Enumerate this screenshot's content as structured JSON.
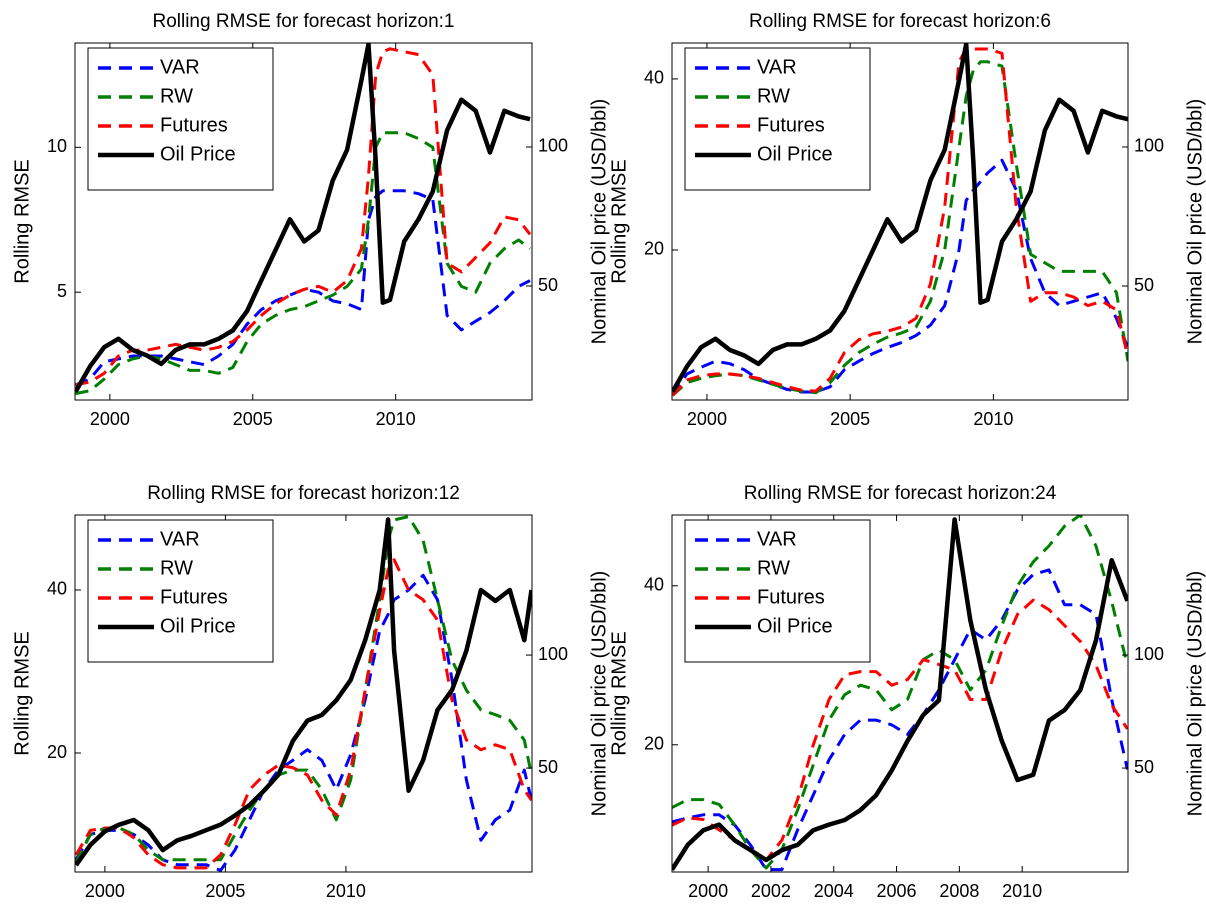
{
  "chart_data": [
    {
      "type": "line",
      "title": "Rolling RMSE for forecast horizon:1",
      "ylabel": "Rolling RMSE",
      "y2label": "Nominal Oil price (USD/bbl)",
      "x": [
        1998.8,
        1999.3,
        1999.8,
        2000.3,
        2000.8,
        2001.3,
        2001.8,
        2002.3,
        2002.8,
        2003.3,
        2003.8,
        2004.3,
        2004.8,
        2005.3,
        2005.8,
        2006.3,
        2006.8,
        2007.3,
        2007.8,
        2008.3,
        2008.8,
        2009.05,
        2009.3,
        2009.55,
        2009.8,
        2010.3,
        2010.8,
        2011.3,
        2011.8,
        2012.3,
        2012.8,
        2013.3,
        2013.8,
        2014.3,
        2014.7
      ],
      "xlim": [
        1998.78,
        2014.77
      ],
      "xticks": [
        2000,
        2005,
        2010
      ],
      "ylim": [
        1.28,
        13.6
      ],
      "yticks": [
        5,
        10
      ],
      "y2lim": [
        9,
        137.4
      ],
      "y2ticks": [
        50,
        100
      ],
      "legend": "upper left",
      "series": [
        {
          "name": "VAR",
          "color": "#0000ff",
          "linestyle": "dashed",
          "values": [
            1.8,
            2.0,
            2.6,
            2.7,
            2.8,
            2.8,
            2.8,
            2.7,
            2.6,
            2.5,
            2.8,
            3.2,
            3.9,
            4.4,
            4.7,
            4.9,
            5.1,
            5.0,
            4.7,
            4.6,
            4.4,
            7.5,
            8.3,
            8.5,
            8.5,
            8.5,
            8.4,
            8.2,
            4.2,
            3.7,
            4.0,
            4.3,
            4.7,
            5.2,
            5.4
          ]
        },
        {
          "name": "RW",
          "color": "#008000",
          "linestyle": "dashed",
          "values": [
            1.5,
            1.6,
            2.0,
            2.5,
            2.7,
            2.8,
            2.7,
            2.5,
            2.3,
            2.3,
            2.2,
            2.4,
            3.3,
            3.9,
            4.2,
            4.4,
            4.5,
            4.7,
            4.9,
            5.2,
            5.8,
            7.5,
            10.0,
            10.5,
            10.5,
            10.5,
            10.3,
            10.0,
            6.0,
            5.2,
            5.0,
            6.0,
            6.5,
            6.8,
            6.5
          ]
        },
        {
          "name": "Futures",
          "color": "#ff0000",
          "linestyle": "dashed",
          "values": [
            1.8,
            1.9,
            2.2,
            2.8,
            3.0,
            3.0,
            3.1,
            3.2,
            3.1,
            3.0,
            3.1,
            3.3,
            3.7,
            4.2,
            4.6,
            4.9,
            5.1,
            5.2,
            5.0,
            5.4,
            6.5,
            9.0,
            12.5,
            13.3,
            13.4,
            13.3,
            13.2,
            12.5,
            6.0,
            5.7,
            6.2,
            6.7,
            7.6,
            7.5,
            7.0
          ]
        },
        {
          "name": "Oil Price",
          "color": "#000000",
          "linestyle": "solid",
          "axis": "y2",
          "values": [
            12,
            21,
            28,
            31,
            27,
            25,
            22,
            27,
            29,
            29,
            31,
            34,
            41,
            52,
            63,
            74,
            66,
            70,
            88,
            99,
            124,
            137,
            95,
            44,
            45,
            66,
            74,
            84,
            106,
            117,
            113,
            98,
            113,
            111,
            110
          ]
        }
      ]
    },
    {
      "type": "line",
      "title": "Rolling RMSE for forecast horizon:6",
      "ylabel": "Rolling RMSE",
      "y2label": "Nominal Oil price (USD/bbl)",
      "x": [
        1998.8,
        1999.3,
        1999.8,
        2000.3,
        2000.8,
        2001.3,
        2001.8,
        2002.3,
        2002.8,
        2003.3,
        2003.8,
        2004.3,
        2004.8,
        2005.3,
        2005.8,
        2006.3,
        2006.8,
        2007.3,
        2007.8,
        2008.3,
        2008.8,
        2009.05,
        2009.3,
        2009.55,
        2009.8,
        2010.3,
        2010.8,
        2011.3,
        2011.8,
        2012.3,
        2012.8,
        2013.3,
        2013.8,
        2014.3,
        2014.7
      ],
      "xlim": [
        1998.78,
        2014.7
      ],
      "xticks": [
        2000,
        2005,
        2010
      ],
      "ylim": [
        2.46,
        44.2
      ],
      "yticks": [
        20,
        40
      ],
      "y2lim": [
        9,
        137.4
      ],
      "y2ticks": [
        50,
        100
      ],
      "legend": "upper left",
      "series": [
        {
          "name": "VAR",
          "color": "#0000ff",
          "linestyle": "dashed",
          "values": [
            3,
            5.5,
            6.3,
            7,
            6.7,
            6,
            4.9,
            4.3,
            3.7,
            3.4,
            3.4,
            4,
            6,
            7,
            7.9,
            8.6,
            9.2,
            10,
            11.2,
            13.5,
            20,
            25.8,
            27,
            28,
            29,
            30.5,
            27,
            19,
            15,
            13.5,
            14,
            14.5,
            15,
            12,
            8.5
          ]
        },
        {
          "name": "RW",
          "color": "#008000",
          "linestyle": "dashed",
          "values": [
            3,
            4.5,
            5,
            5.3,
            5.5,
            5.3,
            4.8,
            4.3,
            3.8,
            3.5,
            3.3,
            4.5,
            6.5,
            8,
            9,
            9.8,
            10.3,
            11,
            14,
            20,
            32,
            38,
            41,
            42,
            42,
            41.5,
            30,
            19.5,
            18.5,
            17.5,
            17.5,
            17.5,
            17.5,
            15,
            7
          ]
        },
        {
          "name": "Futures",
          "color": "#ff0000",
          "linestyle": "dashed",
          "values": [
            3,
            4.8,
            5.3,
            5.5,
            5.5,
            5.3,
            5,
            4.5,
            4,
            3.6,
            3.5,
            5,
            8,
            9.5,
            10.2,
            10.5,
            11,
            12,
            16,
            25,
            42,
            43.5,
            43.5,
            43.5,
            43.5,
            43,
            25,
            14,
            15,
            15,
            14.5,
            13.5,
            14,
            13,
            7.5
          ]
        },
        {
          "name": "Oil Price",
          "color": "#000000",
          "linestyle": "solid",
          "axis": "y2",
          "values": [
            12,
            21,
            28,
            31,
            27,
            25,
            22,
            27,
            29,
            29,
            31,
            34,
            41,
            52,
            63,
            74,
            66,
            70,
            88,
            99,
            124,
            137,
            95,
            44,
            45,
            66,
            74,
            84,
            106,
            117,
            113,
            98,
            113,
            111,
            110
          ]
        }
      ]
    },
    {
      "type": "line",
      "title": "Rolling RMSE for forecast horizon:12",
      "ylabel": "Rolling RMSE",
      "y2label": "Nominal Oil price (USD/bbl)",
      "x": [
        1998.8,
        1999.4,
        2000.0,
        2000.6,
        2001.2,
        2001.8,
        2002.4,
        2003.0,
        2003.6,
        2004.2,
        2004.8,
        2005.4,
        2006.0,
        2006.6,
        2007.2,
        2007.8,
        2008.4,
        2009.0,
        2009.6,
        2010.2,
        2010.8,
        2011.4,
        2011.75,
        2012.0,
        2012.6,
        2013.2,
        2013.8,
        2014.4,
        2015.0,
        2015.6,
        2016.2,
        2016.8,
        2017.4,
        2017.7
      ],
      "xlim": [
        1998.76,
        2017.72
      ],
      "xticks": [
        2000,
        2005,
        2010
      ],
      "ylim": [
        5.4,
        49.2
      ],
      "yticks": [
        20,
        40
      ],
      "y2lim": [
        4,
        162
      ],
      "y2ticks": [
        50,
        100
      ],
      "legend": "upper left",
      "series": [
        {
          "name": "VAR",
          "color": "#0000ff",
          "linestyle": "dashed",
          "values": [
            6.9,
            10,
            10.5,
            10.5,
            10,
            8.7,
            6.9,
            6.3,
            6.3,
            6.3,
            5.6,
            8.1,
            11.8,
            15.5,
            17.9,
            19.1,
            20.4,
            19.1,
            15.5,
            19.8,
            26.5,
            35,
            37,
            38.8,
            40,
            41.8,
            38.8,
            29,
            16.7,
            9.3,
            11.8,
            13,
            17.9,
            14.2
          ]
        },
        {
          "name": "RW",
          "color": "#008000",
          "linestyle": "dashed",
          "values": [
            6.6,
            10,
            10.8,
            10.8,
            10,
            8.1,
            6.9,
            6.9,
            6.9,
            6.9,
            6.9,
            10,
            13,
            15.5,
            17.3,
            17.9,
            17.9,
            15.5,
            11.8,
            16.7,
            27.7,
            38.8,
            46.1,
            48.6,
            49,
            46.1,
            38.8,
            31.4,
            27.7,
            25.3,
            24.7,
            24,
            21.6,
            17.3
          ]
        },
        {
          "name": "Futures",
          "color": "#ff0000",
          "linestyle": "dashed",
          "values": [
            7.5,
            10.5,
            10.8,
            10.8,
            9.6,
            7.5,
            6.3,
            5.9,
            5.9,
            5.9,
            7.5,
            11.2,
            15.5,
            17.3,
            18.5,
            18.2,
            17.3,
            14.2,
            12.4,
            17.9,
            27.7,
            37.5,
            42.5,
            43.7,
            40,
            38.8,
            36.3,
            26.5,
            21.6,
            20.4,
            21,
            20.4,
            15.5,
            14.2
          ]
        },
        {
          "name": "Oil Price",
          "color": "#000000",
          "linestyle": "solid",
          "axis": "y2",
          "values": [
            7,
            16,
            22,
            25,
            27,
            22.5,
            13.7,
            18,
            20,
            22.5,
            25,
            29,
            33.6,
            40,
            47,
            62,
            71,
            73.5,
            80,
            89,
            106.6,
            128.8,
            160,
            102,
            40,
            53.5,
            75.7,
            84.5,
            102,
            128.8,
            124,
            128.8,
            106.6,
            128.8
          ]
        }
      ]
    },
    {
      "type": "line",
      "title": "Rolling RMSE for forecast horizon:24",
      "ylabel": "Rolling RMSE",
      "y2label": "Nominal Oil price (USD/bbl)",
      "x": [
        1998.85,
        1999.35,
        1999.85,
        2000.35,
        2000.85,
        2001.35,
        2001.85,
        2002.35,
        2002.85,
        2003.35,
        2003.85,
        2004.35,
        2004.85,
        2005.35,
        2005.85,
        2006.35,
        2006.85,
        2007.35,
        2007.85,
        2008.35,
        2008.85,
        2009.35,
        2009.85,
        2010.35,
        2010.85,
        2011.35,
        2011.85,
        2012.35,
        2012.85,
        2013.35
      ],
      "xlim": [
        1998.85,
        2013.37
      ],
      "xticks": [
        2000,
        2002,
        2004,
        2006,
        2008,
        2010
      ],
      "ylim": [
        4,
        48.9
      ],
      "yticks": [
        20,
        40
      ],
      "y2lim": [
        4,
        162
      ],
      "y2ticks": [
        50,
        100
      ],
      "legend": "upper left",
      "series": [
        {
          "name": "VAR",
          "color": "#0000ff",
          "linestyle": "dashed",
          "values": [
            10.3,
            10.8,
            11.2,
            11.2,
            9.9,
            7.4,
            4.3,
            4.3,
            9.3,
            13.7,
            18.1,
            21.3,
            23.1,
            23.1,
            22.5,
            21.3,
            23.8,
            26.9,
            30.7,
            34.5,
            33.2,
            35.7,
            39.5,
            41.4,
            42,
            37.6,
            37.6,
            36.4,
            25.7,
            16.9
          ]
        },
        {
          "name": "RW",
          "color": "#008000",
          "linestyle": "dashed",
          "values": [
            12.1,
            13.1,
            13.1,
            12.5,
            9.9,
            6.8,
            4.5,
            6.8,
            11.8,
            17.5,
            23.1,
            26.3,
            27.5,
            26.9,
            24.4,
            25.7,
            30.7,
            31.9,
            30.7,
            26.9,
            29.4,
            35,
            40,
            43,
            45,
            47.5,
            48.9,
            45,
            38,
            30
          ]
        },
        {
          "name": "Futures",
          "color": "#ff0000",
          "linestyle": "dashed",
          "values": [
            9.9,
            10.8,
            10.6,
            9.3,
            8,
            6.8,
            5.5,
            8,
            13.1,
            20,
            25.7,
            28.8,
            29.2,
            29.2,
            27.5,
            28.2,
            30.7,
            30.1,
            29.4,
            25.7,
            25.7,
            31.9,
            36.4,
            38.2,
            37,
            35,
            33,
            30,
            25,
            22
          ]
        },
        {
          "name": "Oil Price",
          "color": "#000000",
          "linestyle": "solid",
          "axis": "y2",
          "values": [
            5,
            16,
            22.5,
            25,
            18,
            13.7,
            9.3,
            13.7,
            16,
            22.5,
            25,
            27,
            31.4,
            38,
            49,
            62,
            73.5,
            80,
            160,
            115.5,
            84.5,
            62,
            44.7,
            47,
            71,
            75.7,
            84.5,
            106.6,
            142,
            124
          ]
        }
      ]
    }
  ]
}
